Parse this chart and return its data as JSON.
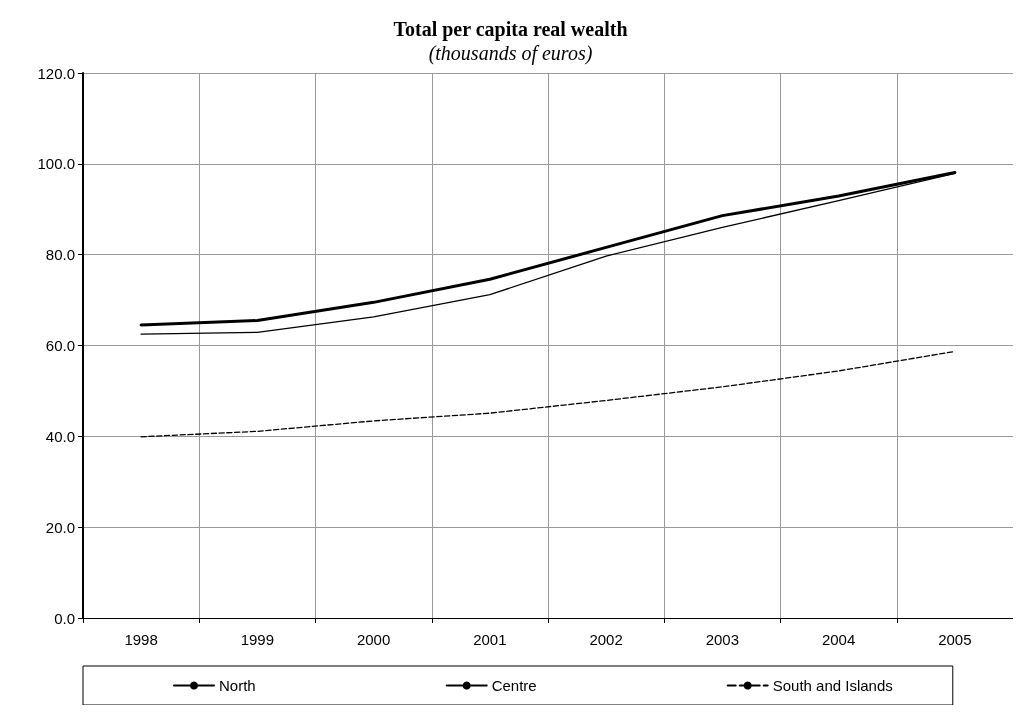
{
  "chart_data": {
    "type": "line",
    "title": "Total per capita real wealth",
    "subtitle": "(thousands of euros)",
    "categories": [
      "1998",
      "1999",
      "2000",
      "2001",
      "2002",
      "2003",
      "2004",
      "2005"
    ],
    "series": [
      {
        "name": "North",
        "color": "#000000",
        "line_style": "solid",
        "values": [
          64.5,
          65.5,
          69.5,
          74.6,
          81.6,
          88.6,
          92.9,
          98.1
        ]
      },
      {
        "name": "Centre",
        "color": "#000000",
        "line_style": "solid",
        "values": [
          62.5,
          62.9,
          66.3,
          71.2,
          79.7,
          86.0,
          91.9,
          97.9
        ]
      },
      {
        "name": "South and Islands",
        "color": "#000000",
        "line_style": "dashed",
        "values": [
          39.9,
          41.1,
          43.4,
          45.1,
          47.9,
          50.9,
          54.4,
          58.7
        ]
      }
    ],
    "ylim": [
      0,
      120
    ],
    "yticks": [
      {
        "value": 0,
        "label": "0.0"
      },
      {
        "value": 20,
        "label": "20.0"
      },
      {
        "value": 40,
        "label": "40.0"
      },
      {
        "value": 60,
        "label": "60.0"
      },
      {
        "value": 80,
        "label": "80.0"
      },
      {
        "value": 100,
        "label": "100.0"
      },
      {
        "value": 120,
        "label": "120.0"
      }
    ],
    "grid": true,
    "legend": "bottom",
    "marker": "none"
  }
}
